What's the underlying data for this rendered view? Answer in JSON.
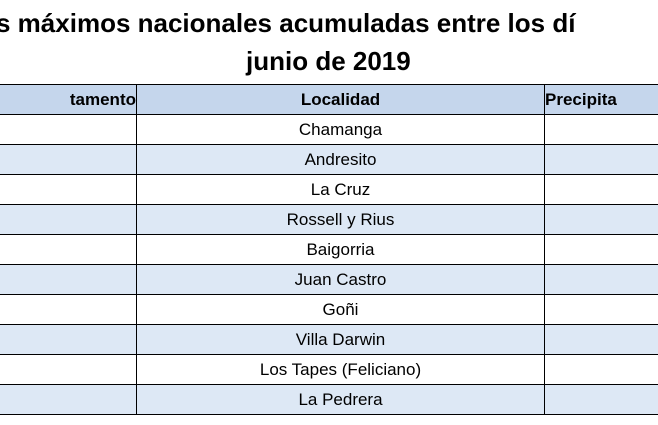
{
  "title": {
    "line1": "s máximos nacionales acumuladas entre los dí",
    "line2": "junio de 2019"
  },
  "table": {
    "headers": {
      "departamento": "tamento",
      "localidad": "Localidad",
      "precipitacion": "Precipita"
    },
    "rows": [
      {
        "localidad": "Chamanga"
      },
      {
        "localidad": "Andresito"
      },
      {
        "localidad": "La Cruz"
      },
      {
        "localidad": "Rossell y Rius"
      },
      {
        "localidad": "Baigorria"
      },
      {
        "localidad": "Juan Castro"
      },
      {
        "localidad": "Goñi"
      },
      {
        "localidad": "Villa Darwin"
      },
      {
        "localidad": "Los Tapes (Feliciano)"
      },
      {
        "localidad": "La Pedrera"
      }
    ]
  },
  "colors": {
    "header_bg": "#c5d6ec",
    "stripe_bg": "#dde8f5",
    "border": "#000000"
  }
}
